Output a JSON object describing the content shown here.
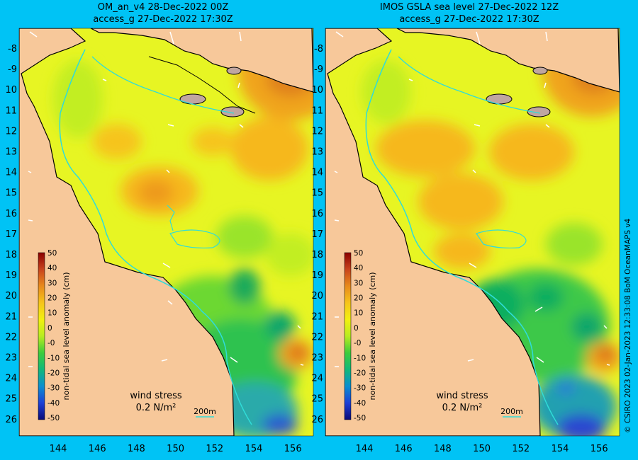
{
  "panels": [
    {
      "title_line1": "OM_an_v4  28-Dec-2022 00Z",
      "title_line2": "access_g 27-Dec-2022 17:30Z"
    },
    {
      "title_line1": "IMOS GSLA sea level  27-Dec-2022 12Z",
      "title_line2": "access_g 27-Dec-2022 17:30Z"
    }
  ],
  "lat_labels": [
    "-8",
    "-9",
    "10",
    "11",
    "12",
    "13",
    "14",
    "15",
    "16",
    "17",
    "18",
    "19",
    "20",
    "21",
    "22",
    "23",
    "24",
    "25",
    "26"
  ],
  "lon_labels": [
    "144",
    "146",
    "148",
    "150",
    "152",
    "154",
    "156"
  ],
  "colorbar": {
    "label": "non-tidal sea level anomaly (cm)",
    "ticks": [
      "50",
      "40",
      "30",
      "20",
      "10",
      "0",
      "-0",
      "-10",
      "-20",
      "-30",
      "-40",
      "-50"
    ]
  },
  "legend": {
    "wind_line1": "wind stress",
    "wind_line2": "0.2 N/m²",
    "isobath": "200m"
  },
  "credit": "© CSIRO 2023   02-Jan-2023 12:33:08 BoM OceanMAPS v4",
  "colors": {
    "background": "#00c3f5",
    "land": "#f7c89a",
    "coastline": "#000000",
    "isobath": "#30dcd8"
  }
}
